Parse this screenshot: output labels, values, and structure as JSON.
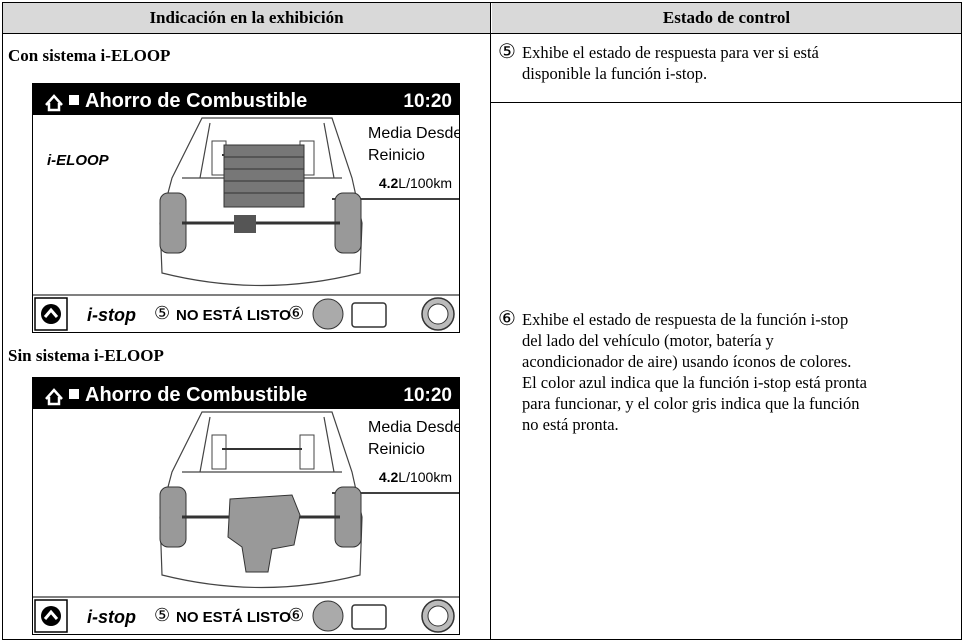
{
  "header": {
    "col1": "Indicación en la exhibición",
    "col2": "Estado de control"
  },
  "sections": [
    {
      "label": "Con sistema i-ELOOP",
      "screen": {
        "title": "Ahorro de Combustible",
        "time": "10:20",
        "avg_lines": [
          "Media Desde",
          "Reinicio"
        ],
        "value": "4.2",
        "unit": "L/100km",
        "system": "i-ELOOP",
        "istop": "i-stop",
        "callout5": "⑤",
        "status": "NO ESTÁ LISTO",
        "callout6": "⑥"
      }
    },
    {
      "label": "Sin sistema i-ELOOP",
      "screen": {
        "title": "Ahorro de Combustible",
        "time": "10:20",
        "avg_lines": [
          "Media Desde",
          "Reinicio"
        ],
        "value": "4.2",
        "unit": "L/100km",
        "istop": "i-stop",
        "callout5": "⑤",
        "status": "NO ESTÁ LISTO",
        "callout6": "⑥"
      }
    }
  ],
  "rows": [
    {
      "marker": "⑤",
      "lines": [
        "Exhibe el estado de respuesta para ver si está",
        "disponible la función i-stop."
      ]
    },
    {
      "marker": "⑥",
      "lines": [
        "Exhibe el estado de respuesta de la función i-stop",
        "del lado del vehículo (motor, batería y",
        "acondicionador de aire) usando íconos de colores.",
        "El color azul indica que la función i-stop está pronta",
        "para funcionar, y el color gris indica que la función",
        "no está pronta."
      ]
    }
  ]
}
